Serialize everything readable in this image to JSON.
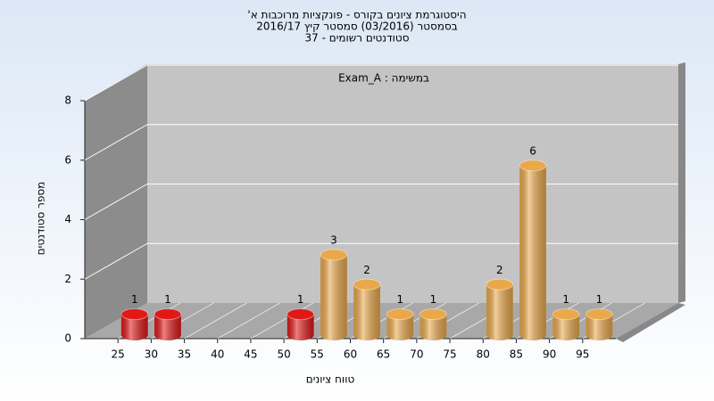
{
  "chart_data": {
    "type": "histogram",
    "title": [
      "היסטוגרמת ציונים בקורס - פונקציות מרוכבות א'",
      "בסמסטר (03/2016) סמסטר קיץ 2016/17",
      "סטודנטים רשומים - 37"
    ],
    "annotation": "במשימה : Exam_A",
    "x_label": "טווח ציונים",
    "y_label": "מספר סטודנטים",
    "bins": [
      25,
      30,
      35,
      40,
      45,
      50,
      55,
      60,
      65,
      70,
      75,
      80,
      85,
      90,
      95,
      100
    ],
    "values": [
      1,
      1,
      0,
      0,
      0,
      1,
      3,
      2,
      1,
      1,
      0,
      2,
      6,
      1,
      1
    ],
    "colors": [
      "#e01818",
      "#e01818",
      "#e01818",
      "#e01818",
      "#e01818",
      "#e01818",
      "#eaa84a",
      "#eaa84a",
      "#eaa84a",
      "#eaa84a",
      "#eaa84a",
      "#eaa84a",
      "#eaa84a",
      "#eaa84a",
      "#eaa84a"
    ],
    "xlim": [
      20,
      100
    ],
    "xticks": [
      25,
      30,
      35,
      40,
      45,
      50,
      55,
      60,
      65,
      70,
      75,
      80,
      85,
      90,
      95
    ],
    "ylim": [
      0,
      8
    ],
    "yticks": [
      0,
      2,
      4,
      6,
      8
    ],
    "grid": true
  }
}
